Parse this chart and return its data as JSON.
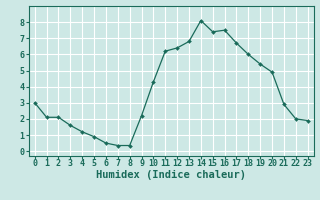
{
  "x": [
    0,
    1,
    2,
    3,
    4,
    5,
    6,
    7,
    8,
    9,
    10,
    11,
    12,
    13,
    14,
    15,
    16,
    17,
    18,
    19,
    20,
    21,
    22,
    23
  ],
  "y": [
    3.0,
    2.1,
    2.1,
    1.6,
    1.2,
    0.9,
    0.5,
    0.35,
    0.35,
    2.2,
    4.3,
    6.2,
    6.4,
    6.8,
    8.1,
    7.4,
    7.5,
    6.7,
    6.0,
    5.4,
    4.9,
    2.9,
    2.0,
    1.9
  ],
  "line_color": "#1a6b5a",
  "marker": "D",
  "marker_size": 2.0,
  "bg_color": "#cde8e5",
  "grid_color": "#ffffff",
  "xlabel": "Humidex (Indice chaleur)",
  "xlim": [
    -0.5,
    23.5
  ],
  "ylim": [
    -0.3,
    9.0
  ],
  "yticks": [
    0,
    1,
    2,
    3,
    4,
    5,
    6,
    7,
    8
  ],
  "xticks": [
    0,
    1,
    2,
    3,
    4,
    5,
    6,
    7,
    8,
    9,
    10,
    11,
    12,
    13,
    14,
    15,
    16,
    17,
    18,
    19,
    20,
    21,
    22,
    23
  ],
  "tick_color": "#1a6b5a",
  "label_fontsize": 7.5,
  "tick_fontsize": 6.0
}
